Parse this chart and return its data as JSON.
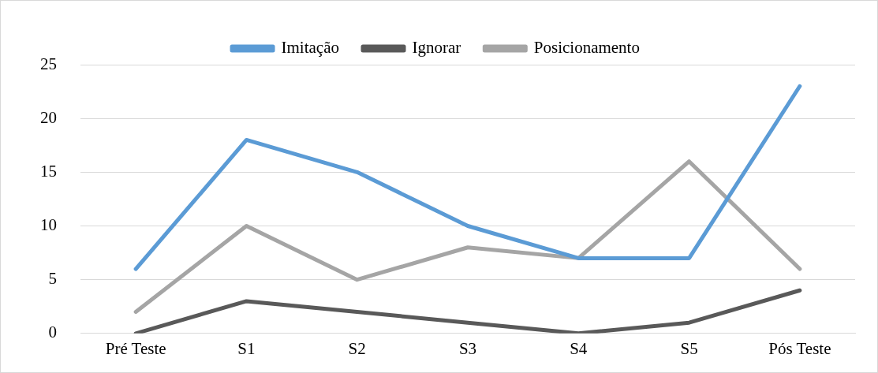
{
  "chart_data": {
    "type": "line",
    "categories": [
      "Pré Teste",
      "S1",
      "S2",
      "S3",
      "S4",
      "S5",
      "Pós Teste"
    ],
    "series": [
      {
        "name": "Imitação",
        "color": "#5b9bd5",
        "values": [
          6,
          18,
          15,
          10,
          7,
          7,
          23
        ]
      },
      {
        "name": "Ignorar",
        "color": "#595959",
        "values": [
          0,
          3,
          2,
          1,
          0,
          1,
          4
        ]
      },
      {
        "name": "Posicionamento",
        "color": "#a5a5a5",
        "values": [
          2,
          10,
          5,
          8,
          7,
          16,
          6
        ]
      }
    ],
    "ylim": [
      0,
      25
    ],
    "yticks": [
      0,
      5,
      10,
      15,
      20,
      25
    ],
    "grid": "y",
    "legend": "top",
    "marker": "none",
    "line_style": "solid"
  }
}
